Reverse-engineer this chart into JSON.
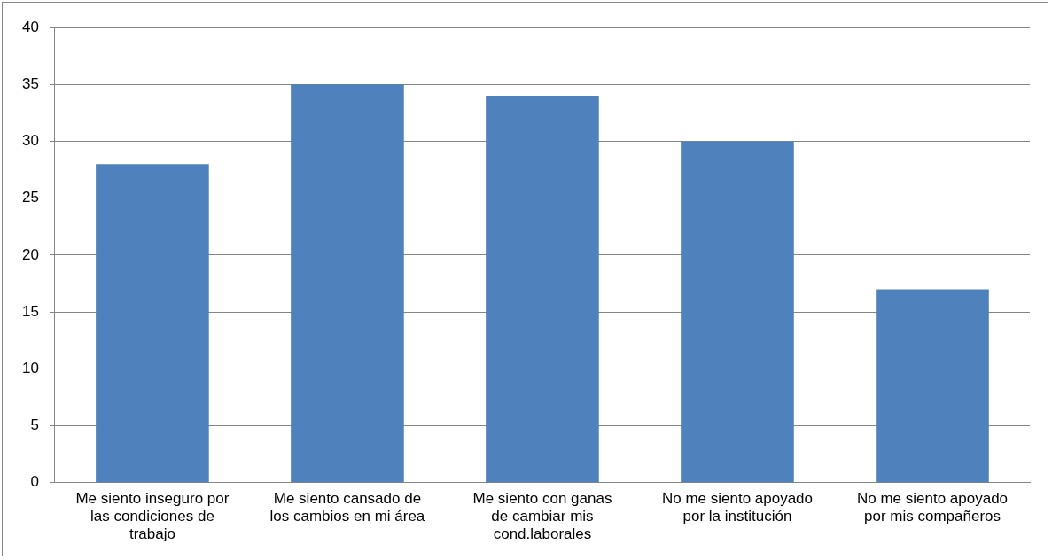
{
  "chart_data": {
    "type": "bar",
    "categories": [
      "Me siento inseguro por las condiciones de trabajo",
      "Me siento cansado de los cambios en mi área",
      "Me siento con ganas de cambiar mis cond.laborales",
      "No me siento apoyado por la institución",
      "No me siento apoyado por mis compañeros"
    ],
    "values": [
      28,
      35,
      34,
      30,
      17
    ],
    "color": "#4f81bd",
    "ylim": [
      0,
      40
    ],
    "yticks": [
      0,
      5,
      10,
      15,
      20,
      25,
      30,
      35,
      40
    ],
    "grid": "y",
    "legend": false
  }
}
